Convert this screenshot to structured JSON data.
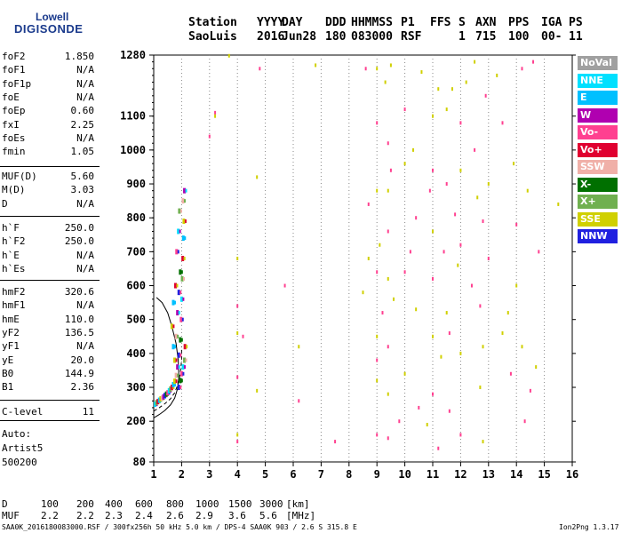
{
  "logo": {
    "line1": "Lowell",
    "line2": "DIGISONDE"
  },
  "header": {
    "labels": [
      "Station",
      "YYYY",
      "DAY",
      "DDD",
      "HHMMSS",
      "P1",
      "FFS",
      "S",
      "AXN",
      "PPS",
      "IGA",
      "PS"
    ],
    "values": [
      "SaoLuis",
      "2016",
      "Jun28",
      "180",
      "083000",
      "RSF",
      "",
      "1",
      "715",
      "100",
      "00-",
      "11"
    ]
  },
  "params_group1": [
    {
      "name": "foF2",
      "value": "1.850"
    },
    {
      "name": "foF1",
      "value": "N/A"
    },
    {
      "name": "foF1p",
      "value": "N/A"
    },
    {
      "name": "foE",
      "value": "N/A"
    },
    {
      "name": "foEp",
      "value": "0.60"
    },
    {
      "name": "fxI",
      "value": "2.25"
    },
    {
      "name": "foEs",
      "value": "N/A"
    },
    {
      "name": "fmin",
      "value": "1.05"
    }
  ],
  "params_group2": [
    {
      "name": "MUF(D)",
      "value": "5.60"
    },
    {
      "name": "M(D)",
      "value": "3.03"
    },
    {
      "name": "D",
      "value": "N/A"
    }
  ],
  "params_group3": [
    {
      "name": "h`F",
      "value": "250.0"
    },
    {
      "name": "h`F2",
      "value": "250.0"
    },
    {
      "name": "h`E",
      "value": "N/A"
    },
    {
      "name": "h`Es",
      "value": "N/A"
    }
  ],
  "params_group4": [
    {
      "name": "hmF2",
      "value": "320.6"
    },
    {
      "name": "hmF1",
      "value": "N/A"
    },
    {
      "name": "hmE",
      "value": "110.0"
    },
    {
      "name": "yF2",
      "value": "136.5"
    },
    {
      "name": "yF1",
      "value": "N/A"
    },
    {
      "name": "yE",
      "value": "20.0"
    },
    {
      "name": "B0",
      "value": "144.9"
    },
    {
      "name": "B1",
      "value": "2.36"
    }
  ],
  "clevel": {
    "name": "C-level",
    "value": "11"
  },
  "auto": {
    "line1": "Auto:",
    "line2": "Artist5",
    "line3": "500200"
  },
  "legend": [
    {
      "label": "NoVal",
      "color": "#a0a0a0"
    },
    {
      "label": "NNE",
      "color": "#00e0ff"
    },
    {
      "label": "E",
      "color": "#00c0ff"
    },
    {
      "label": "W",
      "color": "#b000b0"
    },
    {
      "label": "Vo-",
      "color": "#ff4090"
    },
    {
      "label": "Vo+",
      "color": "#e00030"
    },
    {
      "label": "SSW",
      "color": "#f0b0a8"
    },
    {
      "label": "X-",
      "color": "#007000"
    },
    {
      "label": "X+",
      "color": "#70b050"
    },
    {
      "label": "SSE",
      "color": "#d0d000"
    },
    {
      "label": "NNW",
      "color": "#2020e0"
    }
  ],
  "footer": {
    "d_label": "D",
    "d_values": [
      "100",
      "200",
      "400",
      "600",
      "800",
      "1000",
      "1500",
      "3000"
    ],
    "d_unit": "[km]",
    "muf_label": "MUF",
    "muf_values": [
      "2.2",
      "2.2",
      "2.3",
      "2.4",
      "2.6",
      "2.9",
      "3.6",
      "5.6"
    ],
    "muf_unit": "[MHz]",
    "info": "SAA0K_2016180083000.RSF / 300fx256h 50 kHz 5.0 km / DPS-4 SAA0K 903 / 2.6 S 315.8 E",
    "version": "Ion2Png 1.3.17"
  },
  "chart_data": {
    "type": "scatter",
    "title": "",
    "xlabel": "",
    "ylabel": "",
    "xlim": [
      1,
      16
    ],
    "ylim": [
      80,
      1280
    ],
    "x_ticks": [
      1,
      2,
      3,
      4,
      5,
      6,
      7,
      8,
      9,
      10,
      11,
      12,
      13,
      14,
      15,
      16
    ],
    "y_ticks": [
      80,
      200,
      300,
      400,
      500,
      600,
      700,
      800,
      900,
      1000,
      1100,
      1280
    ],
    "grid": "dotted vertical",
    "legend_position": "right",
    "trace_points": [
      [
        1.05,
        250
      ],
      [
        1.1,
        255
      ],
      [
        1.15,
        258
      ],
      [
        1.2,
        262
      ],
      [
        1.25,
        266
      ],
      [
        1.3,
        268
      ],
      [
        1.35,
        272
      ],
      [
        1.4,
        276
      ],
      [
        1.45,
        280
      ],
      [
        1.5,
        284
      ],
      [
        1.55,
        290
      ],
      [
        1.6,
        295
      ],
      [
        1.65,
        300
      ],
      [
        1.7,
        308
      ],
      [
        1.75,
        318
      ],
      [
        1.8,
        335
      ],
      [
        1.85,
        360
      ],
      [
        1.9,
        395
      ],
      [
        1.95,
        440
      ],
      [
        1.98,
        500
      ],
      [
        2.0,
        560
      ],
      [
        2.02,
        620
      ],
      [
        2.04,
        680
      ],
      [
        2.06,
        740
      ],
      [
        2.08,
        790
      ],
      [
        2.05,
        850
      ],
      [
        2.1,
        880
      ],
      [
        1.9,
        300
      ],
      [
        1.95,
        320
      ],
      [
        2.0,
        340
      ],
      [
        2.05,
        360
      ],
      [
        2.1,
        380
      ],
      [
        2.12,
        420
      ],
      [
        1.7,
        420
      ],
      [
        1.75,
        380
      ],
      [
        1.8,
        450
      ],
      [
        1.85,
        520
      ],
      [
        1.9,
        580
      ],
      [
        1.95,
        640
      ],
      [
        1.82,
        700
      ],
      [
        1.88,
        760
      ],
      [
        1.92,
        820
      ],
      [
        1.78,
        600
      ],
      [
        1.7,
        550
      ],
      [
        1.65,
        480
      ]
    ],
    "scatter_points": [
      [
        3.2,
        1110
      ],
      [
        3.2,
        1100
      ],
      [
        3.0,
        1040
      ],
      [
        4.0,
        680
      ],
      [
        4.0,
        540
      ],
      [
        4.0,
        460
      ],
      [
        4.0,
        330
      ],
      [
        4.0,
        160
      ],
      [
        4.0,
        140
      ],
      [
        4.7,
        290
      ],
      [
        4.8,
        1240
      ],
      [
        3.7,
        1278
      ],
      [
        4.2,
        450
      ],
      [
        4.7,
        920
      ],
      [
        5.7,
        600
      ],
      [
        6.2,
        420
      ],
      [
        6.2,
        260
      ],
      [
        6.8,
        1250
      ],
      [
        7.5,
        140
      ],
      [
        8.5,
        580
      ],
      [
        8.6,
        1240
      ],
      [
        8.7,
        680
      ],
      [
        8.7,
        840
      ],
      [
        9.0,
        1240
      ],
      [
        9.0,
        1080
      ],
      [
        9.0,
        880
      ],
      [
        9.0,
        640
      ],
      [
        9.0,
        450
      ],
      [
        9.0,
        380
      ],
      [
        9.0,
        320
      ],
      [
        9.0,
        160
      ],
      [
        9.1,
        720
      ],
      [
        9.2,
        520
      ],
      [
        9.3,
        1200
      ],
      [
        9.4,
        1020
      ],
      [
        9.4,
        880
      ],
      [
        9.4,
        760
      ],
      [
        9.4,
        620
      ],
      [
        9.4,
        420
      ],
      [
        9.4,
        280
      ],
      [
        9.4,
        150
      ],
      [
        9.5,
        1250
      ],
      [
        9.5,
        940
      ],
      [
        9.6,
        560
      ],
      [
        10.0,
        1120
      ],
      [
        10.0,
        960
      ],
      [
        10.0,
        640
      ],
      [
        10.0,
        340
      ],
      [
        10.2,
        700
      ],
      [
        10.3,
        1000
      ],
      [
        10.4,
        800
      ],
      [
        10.4,
        530
      ],
      [
        10.5,
        240
      ],
      [
        10.6,
        1230
      ],
      [
        10.9,
        880
      ],
      [
        11.0,
        1100
      ],
      [
        11.0,
        940
      ],
      [
        11.0,
        760
      ],
      [
        11.0,
        620
      ],
      [
        11.0,
        450
      ],
      [
        11.0,
        280
      ],
      [
        11.2,
        1180
      ],
      [
        11.2,
        120
      ],
      [
        11.3,
        390
      ],
      [
        11.4,
        700
      ],
      [
        11.5,
        1120
      ],
      [
        11.5,
        900
      ],
      [
        11.5,
        520
      ],
      [
        11.6,
        460
      ],
      [
        11.7,
        1180
      ],
      [
        11.8,
        810
      ],
      [
        11.9,
        660
      ],
      [
        12.0,
        1080
      ],
      [
        12.0,
        940
      ],
      [
        12.0,
        720
      ],
      [
        12.0,
        400
      ],
      [
        12.0,
        160
      ],
      [
        12.2,
        1200
      ],
      [
        12.4,
        600
      ],
      [
        12.5,
        1260
      ],
      [
        12.5,
        1000
      ],
      [
        12.6,
        860
      ],
      [
        12.7,
        540
      ],
      [
        12.7,
        300
      ],
      [
        12.8,
        790
      ],
      [
        12.8,
        420
      ],
      [
        12.9,
        1160
      ],
      [
        13.0,
        900
      ],
      [
        13.0,
        680
      ],
      [
        13.3,
        1220
      ],
      [
        13.5,
        1080
      ],
      [
        13.7,
        520
      ],
      [
        13.8,
        340
      ],
      [
        13.9,
        960
      ],
      [
        14.0,
        780
      ],
      [
        14.0,
        600
      ],
      [
        14.2,
        1240
      ],
      [
        14.2,
        420
      ],
      [
        14.3,
        200
      ],
      [
        14.4,
        880
      ],
      [
        14.6,
        1260
      ],
      [
        14.7,
        360
      ],
      [
        14.8,
        700
      ],
      [
        15.5,
        840
      ],
      [
        14.5,
        290
      ],
      [
        12.8,
        140
      ],
      [
        11.6,
        230
      ],
      [
        10.8,
        190
      ],
      [
        9.8,
        200
      ],
      [
        13.5,
        460
      ]
    ],
    "model_curve_1": [
      [
        1.0,
        210
      ],
      [
        1.2,
        220
      ],
      [
        1.4,
        232
      ],
      [
        1.6,
        248
      ],
      [
        1.75,
        268
      ],
      [
        1.85,
        295
      ],
      [
        1.9,
        330
      ],
      [
        1.88,
        380
      ],
      [
        1.8,
        430
      ],
      [
        1.65,
        480
      ],
      [
        1.5,
        520
      ],
      [
        1.3,
        550
      ],
      [
        1.1,
        565
      ]
    ],
    "model_curve_2": [
      [
        1.0,
        230
      ],
      [
        1.2,
        240
      ],
      [
        1.4,
        252
      ],
      [
        1.6,
        266
      ],
      [
        1.75,
        284
      ],
      [
        1.85,
        305
      ],
      [
        1.95,
        340
      ],
      [
        2.0,
        380
      ],
      [
        2.0,
        420
      ]
    ]
  }
}
